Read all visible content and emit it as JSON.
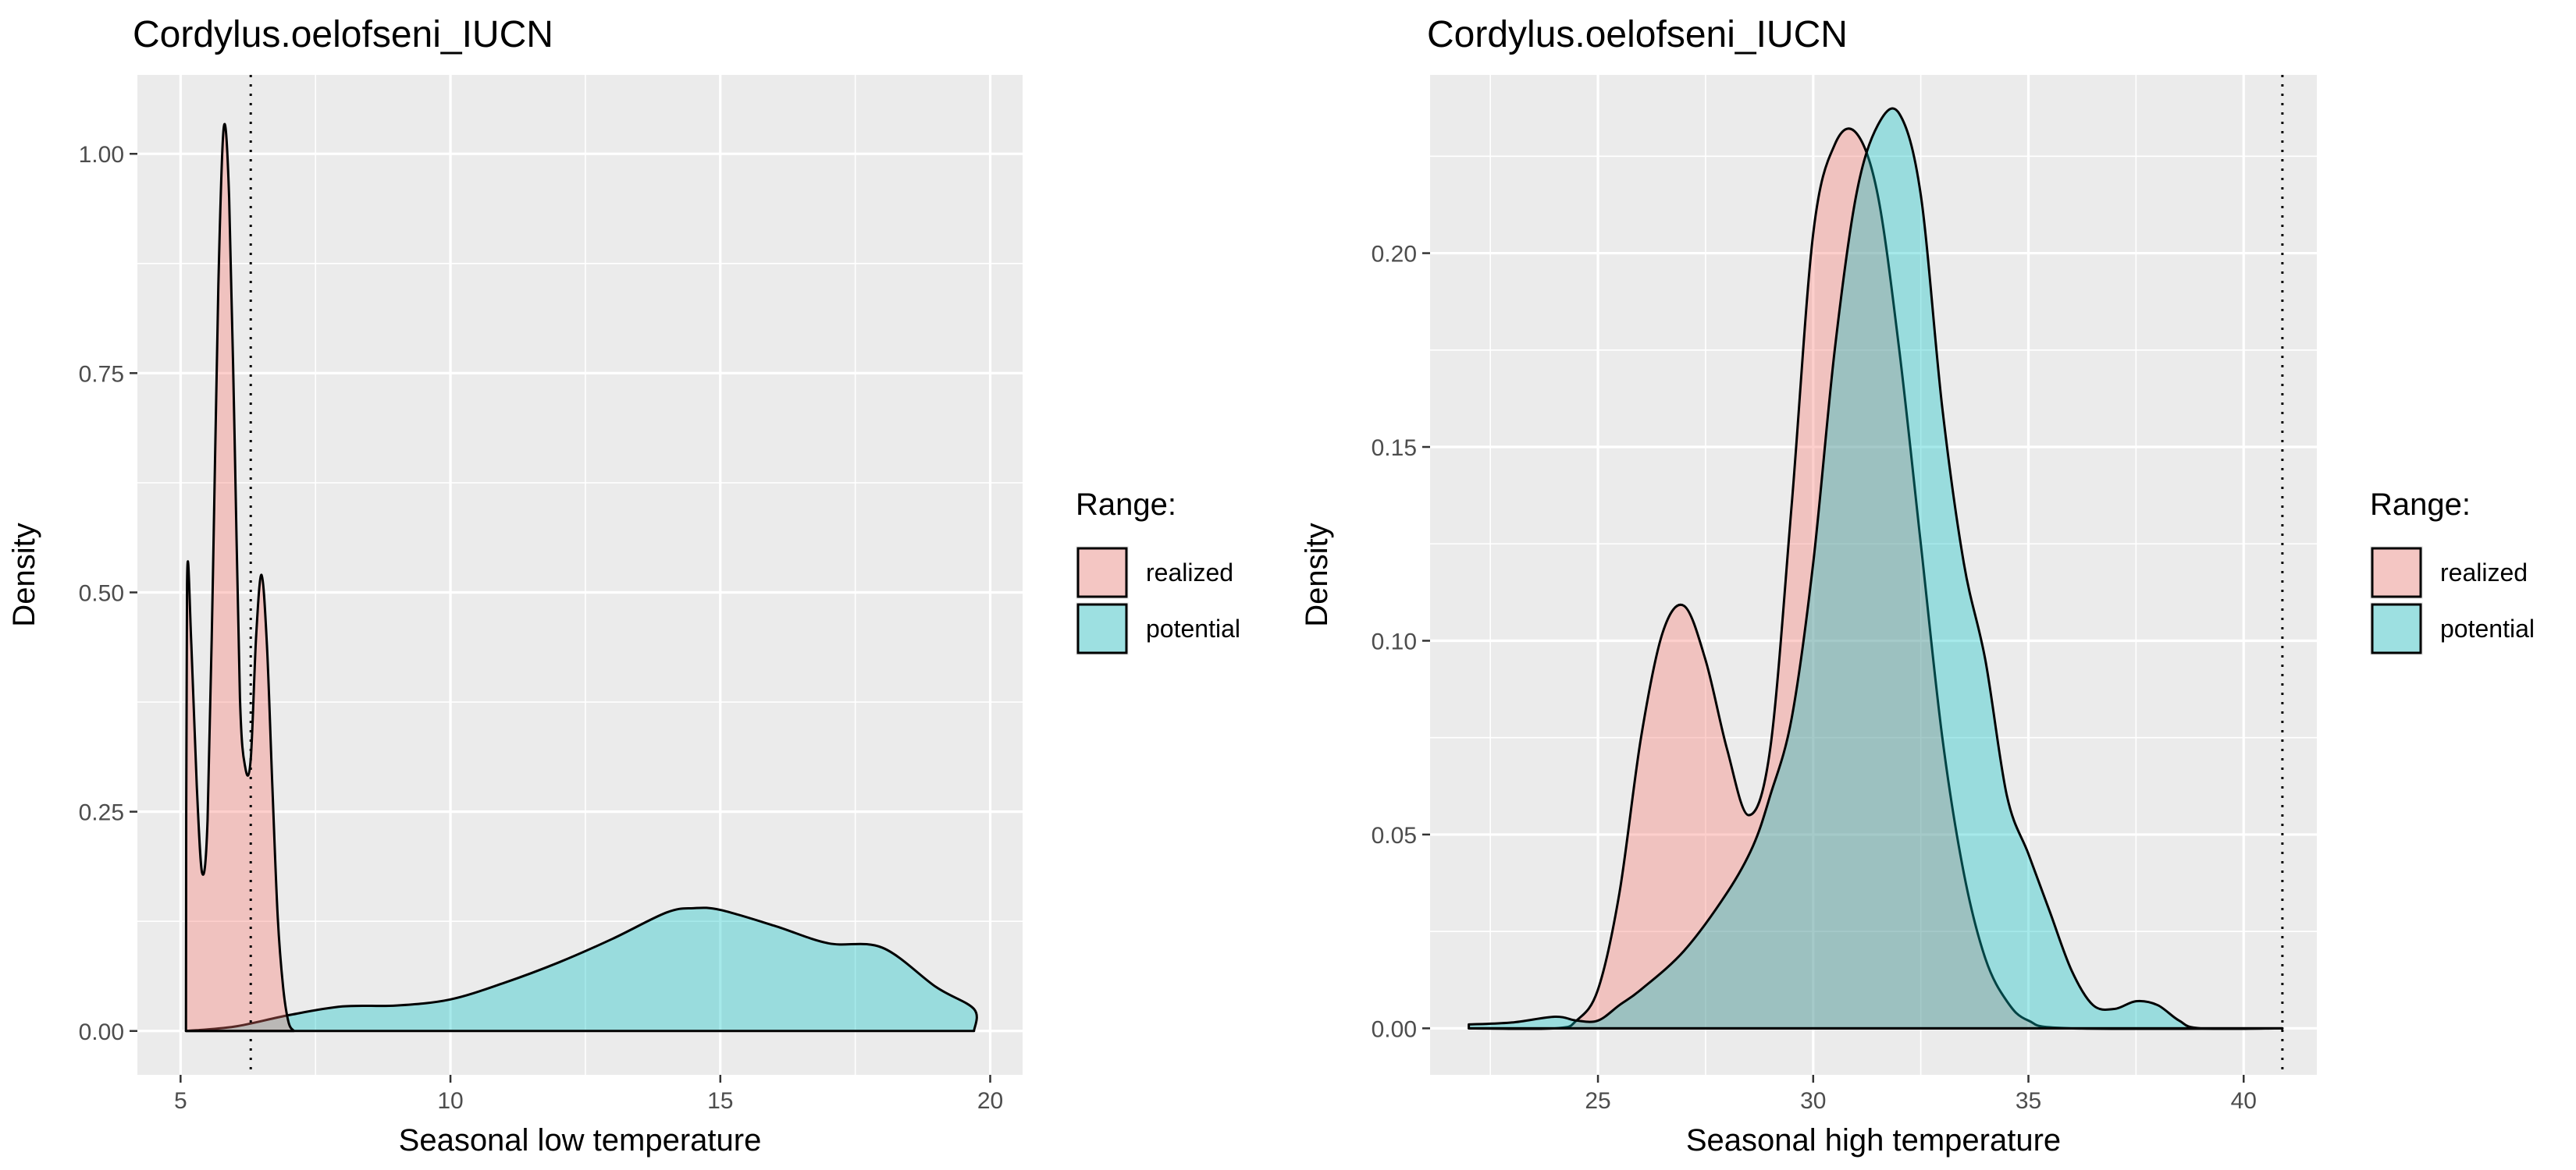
{
  "chart_data": [
    {
      "type": "area",
      "title": "Cordylus.oelofseni_IUCN",
      "xlabel": "Seasonal low temperature",
      "ylabel": "Density",
      "xlim": [
        4.2,
        20.6
      ],
      "ylim": [
        -0.05,
        1.09
      ],
      "x_ticks": [
        5,
        10,
        15,
        20
      ],
      "y_ticks": [
        0.0,
        0.25,
        0.5,
        0.75,
        1.0
      ],
      "x_tick_labels": [
        "5",
        "10",
        "15",
        "20"
      ],
      "y_tick_labels": [
        "0.00",
        "0.25",
        "0.50",
        "0.75",
        "1.00"
      ],
      "grid": true,
      "legend": {
        "title": "Range:",
        "position": "right",
        "entries": [
          "realized",
          "potential"
        ]
      },
      "vline": 6.3,
      "colors": {
        "realized": "#F8766D",
        "potential": "#00BFC4",
        "panel": "#EBEBEB",
        "grid": "#FFFFFF"
      },
      "series": [
        {
          "name": "realized",
          "x": [
            5.1,
            5.12,
            5.2,
            5.3,
            5.4,
            5.5,
            5.6,
            5.7,
            5.8,
            5.9,
            6.0,
            6.1,
            6.2,
            6.3,
            6.4,
            6.5,
            6.6,
            6.7,
            6.8,
            6.9,
            7.0,
            7.1
          ],
          "y": [
            0.0,
            0.51,
            0.44,
            0.28,
            0.18,
            0.24,
            0.52,
            0.85,
            1.03,
            0.95,
            0.68,
            0.38,
            0.3,
            0.31,
            0.45,
            0.52,
            0.44,
            0.28,
            0.13,
            0.05,
            0.01,
            0.0
          ]
        },
        {
          "name": "potential",
          "x": [
            5.1,
            6.0,
            7.0,
            8.0,
            9.0,
            10.0,
            11.0,
            12.0,
            13.0,
            14.0,
            14.5,
            15.0,
            16.0,
            17.0,
            18.0,
            19.0,
            19.7,
            19.7
          ],
          "y": [
            0.0,
            0.005,
            0.018,
            0.028,
            0.029,
            0.036,
            0.055,
            0.078,
            0.105,
            0.135,
            0.14,
            0.138,
            0.12,
            0.1,
            0.095,
            0.05,
            0.025,
            0.0
          ]
        }
      ]
    },
    {
      "type": "area",
      "title": "Cordylus.oelofseni_IUCN",
      "xlabel": "Seasonal high temperature",
      "ylabel": "Density",
      "xlim": [
        21.1,
        41.7
      ],
      "ylim": [
        -0.012,
        0.246
      ],
      "x_ticks": [
        25,
        30,
        35,
        40
      ],
      "y_ticks": [
        0.0,
        0.05,
        0.1,
        0.15,
        0.2
      ],
      "x_tick_labels": [
        "25",
        "30",
        "35",
        "40"
      ],
      "y_tick_labels": [
        "0.00",
        "0.05",
        "0.10",
        "0.15",
        "0.20"
      ],
      "grid": true,
      "legend": {
        "title": "Range:",
        "position": "right",
        "entries": [
          "realized",
          "potential"
        ]
      },
      "vline": 40.9,
      "colors": {
        "realized": "#F8766D",
        "potential": "#00BFC4",
        "panel": "#EBEBEB",
        "grid": "#FFFFFF"
      },
      "series": [
        {
          "name": "realized",
          "x": [
            22.0,
            24.0,
            24.5,
            25.0,
            25.5,
            26.0,
            26.5,
            27.0,
            27.5,
            28.0,
            28.5,
            29.0,
            29.5,
            30.0,
            30.5,
            31.0,
            31.5,
            32.0,
            32.5,
            33.0,
            33.5,
            34.0,
            34.5,
            35.0,
            36.0,
            40.9
          ],
          "y": [
            0.0,
            0.0,
            0.002,
            0.01,
            0.035,
            0.075,
            0.102,
            0.109,
            0.095,
            0.072,
            0.055,
            0.072,
            0.135,
            0.205,
            0.228,
            0.231,
            0.215,
            0.175,
            0.125,
            0.075,
            0.04,
            0.018,
            0.007,
            0.002,
            0.0,
            0.0
          ]
        },
        {
          "name": "potential",
          "x": [
            22.0,
            23.0,
            24.0,
            24.5,
            25.0,
            25.5,
            26.0,
            27.0,
            28.0,
            28.6,
            29.0,
            29.5,
            30.0,
            30.5,
            31.0,
            31.5,
            32.0,
            32.5,
            33.0,
            33.5,
            34.0,
            34.5,
            35.0,
            35.5,
            36.0,
            36.5,
            37.0,
            37.5,
            38.0,
            38.5,
            39.0,
            40.9
          ],
          "y": [
            0.001,
            0.0015,
            0.003,
            0.002,
            0.002,
            0.006,
            0.01,
            0.02,
            0.035,
            0.047,
            0.06,
            0.08,
            0.12,
            0.175,
            0.215,
            0.233,
            0.236,
            0.215,
            0.16,
            0.12,
            0.095,
            0.06,
            0.045,
            0.03,
            0.015,
            0.006,
            0.005,
            0.007,
            0.006,
            0.002,
            0.0,
            0.0
          ]
        }
      ]
    }
  ]
}
